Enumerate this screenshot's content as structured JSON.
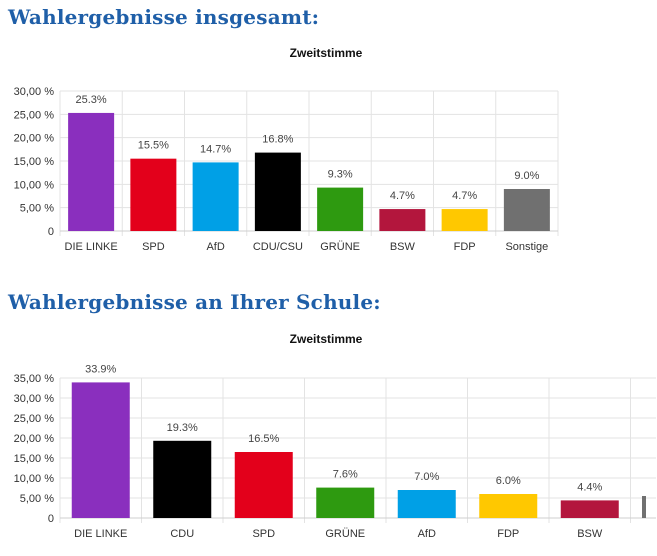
{
  "sections": [
    {
      "heading": "Wahlergebnisse insgesamt:"
    },
    {
      "heading": "Wahlergebnisse an Ihrer Schule:"
    }
  ],
  "chart_data": [
    {
      "type": "bar",
      "title": "Zweitstimme",
      "categories": [
        "DIE LINKE",
        "SPD",
        "AfD",
        "CDU/CSU",
        "GRÜNE",
        "BSW",
        "FDP",
        "Sonstige"
      ],
      "values": [
        25.3,
        15.5,
        14.7,
        16.8,
        9.3,
        4.7,
        4.7,
        9.0
      ],
      "value_labels": [
        "25.3%",
        "15.5%",
        "14.7%",
        "16.8%",
        "9.3%",
        "4.7%",
        "4.7%",
        "9.0%"
      ],
      "colors": [
        "#8a2fbe",
        "#e3001b",
        "#00a0e6",
        "#000000",
        "#2e9a10",
        "#b3163d",
        "#ffc800",
        "#707070"
      ],
      "ylim": [
        0,
        30
      ],
      "yticks": [
        0,
        5,
        10,
        15,
        20,
        25,
        30
      ],
      "ytick_labels": [
        "0",
        "5,00 %",
        "10,00 %",
        "15,00 %",
        "20,00 %",
        "25,00 %",
        "30,00 %"
      ],
      "grid": true,
      "xlabel": "",
      "ylabel": ""
    },
    {
      "type": "bar",
      "title": "Zweitstimme",
      "categories": [
        "DIE LINKE",
        "CDU",
        "SPD",
        "GRÜNE",
        "AfD",
        "FDP",
        "BSW"
      ],
      "values": [
        33.9,
        19.3,
        16.5,
        7.6,
        7.0,
        6.0,
        4.4
      ],
      "value_labels": [
        "33.9%",
        "19.3%",
        "16.5%",
        "7.6%",
        "7.0%",
        "6.0%",
        "4.4%"
      ],
      "colors": [
        "#8a2fbe",
        "#000000",
        "#e3001b",
        "#2e9a10",
        "#00a0e6",
        "#ffc800",
        "#b3163d"
      ],
      "ylim": [
        0,
        35
      ],
      "yticks": [
        0,
        5,
        10,
        15,
        20,
        25,
        30,
        35
      ],
      "ytick_labels": [
        "0",
        "5,00 %",
        "10,00 %",
        "15,00 %",
        "20,00 %",
        "25,00 %",
        "30,00 %",
        "35,00 %"
      ],
      "grid": true,
      "xlabel": "",
      "ylabel": ""
    }
  ]
}
